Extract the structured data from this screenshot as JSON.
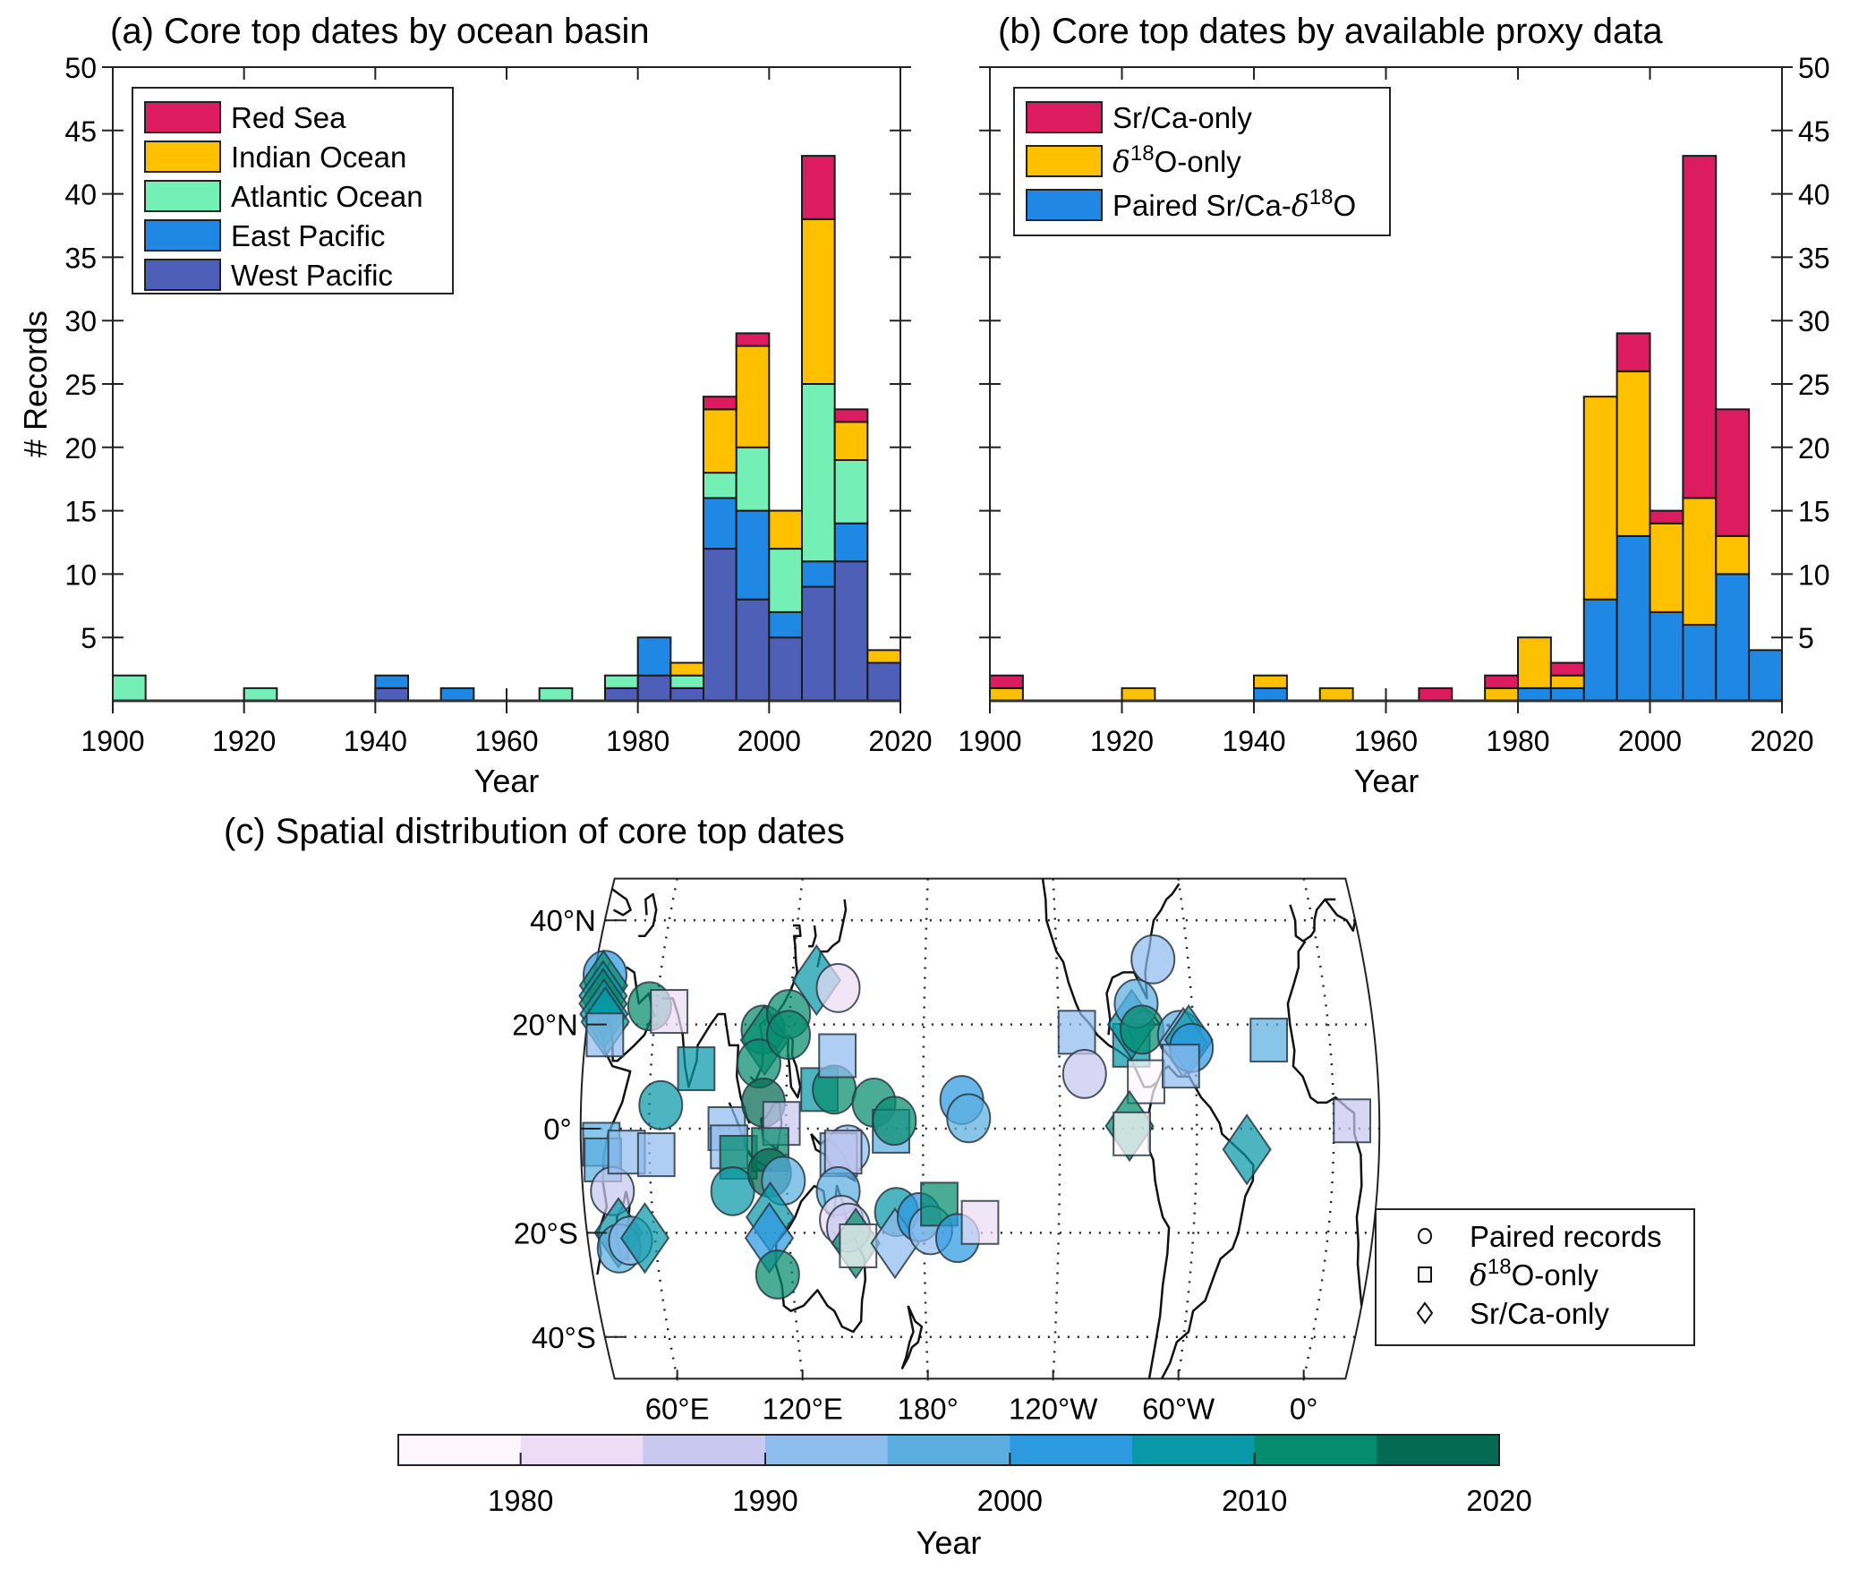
{
  "chart_data": [
    {
      "panel": "a",
      "type": "bar",
      "stacked": true,
      "title": "(a) Core top dates by ocean basin",
      "xlabel": "Year",
      "ylabel": "# Records",
      "xlim": [
        1900,
        2020
      ],
      "ylim": [
        0,
        50
      ],
      "xticks": [
        1900,
        1920,
        1940,
        1960,
        1980,
        2000,
        2020
      ],
      "yticks": [
        5,
        10,
        15,
        20,
        25,
        30,
        35,
        40,
        45,
        50
      ],
      "bin_width": 5,
      "bin_starts": [
        1900,
        1905,
        1910,
        1915,
        1920,
        1925,
        1930,
        1935,
        1940,
        1945,
        1950,
        1955,
        1960,
        1965,
        1970,
        1975,
        1980,
        1985,
        1990,
        1995,
        2000,
        2005,
        2010,
        2015
      ],
      "legend_position": "top-left",
      "series": [
        {
          "name": "West Pacific",
          "color": "#4e5fb8",
          "values": [
            0,
            0,
            0,
            0,
            0,
            0,
            0,
            0,
            1,
            0,
            0,
            0,
            0,
            0,
            0,
            1,
            2,
            1,
            12,
            8,
            5,
            9,
            11,
            3
          ]
        },
        {
          "name": "East Pacific",
          "color": "#1f88e5",
          "values": [
            0,
            0,
            0,
            0,
            0,
            0,
            0,
            0,
            1,
            0,
            1,
            0,
            0,
            0,
            0,
            0,
            3,
            0,
            4,
            7,
            2,
            2,
            3,
            0
          ]
        },
        {
          "name": "Atlantic Ocean",
          "color": "#74efb6",
          "values": [
            2,
            0,
            0,
            0,
            1,
            0,
            0,
            0,
            0,
            0,
            0,
            0,
            0,
            1,
            0,
            1,
            0,
            1,
            2,
            5,
            5,
            14,
            5,
            0
          ]
        },
        {
          "name": "Indian Ocean",
          "color": "#ffc000",
          "values": [
            0,
            0,
            0,
            0,
            0,
            0,
            0,
            0,
            0,
            0,
            0,
            0,
            0,
            0,
            0,
            0,
            0,
            1,
            5,
            8,
            3,
            13,
            3,
            1
          ]
        },
        {
          "name": "Red Sea",
          "color": "#dc1c5e",
          "values": [
            0,
            0,
            0,
            0,
            0,
            0,
            0,
            0,
            0,
            0,
            0,
            0,
            0,
            0,
            0,
            0,
            0,
            0,
            1,
            1,
            0,
            5,
            1,
            0
          ]
        }
      ],
      "legend_order": [
        "Red Sea",
        "Indian Ocean",
        "Atlantic Ocean",
        "East Pacific",
        "West Pacific"
      ]
    },
    {
      "panel": "b",
      "type": "bar",
      "stacked": true,
      "title": "(b) Core top dates by available proxy data",
      "xlabel": "Year",
      "ylabel": "",
      "xlim": [
        1900,
        2020
      ],
      "ylim": [
        0,
        50
      ],
      "xticks": [
        1900,
        1920,
        1940,
        1960,
        1980,
        2000,
        2020
      ],
      "yticks": [
        5,
        10,
        15,
        20,
        25,
        30,
        35,
        40,
        45,
        50
      ],
      "yaxis_side": "right",
      "bin_width": 5,
      "bin_starts": [
        1900,
        1905,
        1910,
        1915,
        1920,
        1925,
        1930,
        1935,
        1940,
        1945,
        1950,
        1955,
        1960,
        1965,
        1970,
        1975,
        1980,
        1985,
        1990,
        1995,
        2000,
        2005,
        2010,
        2015
      ],
      "legend_position": "top-left",
      "series": [
        {
          "name": "Paired Sr/Ca-δ18O",
          "color": "#1f88e5",
          "values": [
            0,
            0,
            0,
            0,
            0,
            0,
            0,
            0,
            1,
            0,
            0,
            0,
            0,
            0,
            0,
            0,
            1,
            1,
            8,
            13,
            7,
            6,
            10,
            4
          ]
        },
        {
          "name": "δ18O-only",
          "color": "#ffc000",
          "values": [
            1,
            0,
            0,
            0,
            1,
            0,
            0,
            0,
            1,
            0,
            1,
            0,
            0,
            0,
            0,
            1,
            4,
            1,
            16,
            13,
            7,
            10,
            3,
            0
          ]
        },
        {
          "name": "Sr/Ca-only",
          "color": "#dc1c5e",
          "values": [
            1,
            0,
            0,
            0,
            0,
            0,
            0,
            0,
            0,
            0,
            0,
            0,
            0,
            1,
            0,
            1,
            0,
            1,
            0,
            3,
            1,
            27,
            10,
            0
          ]
        }
      ],
      "legend_order": [
        "Sr/Ca-only",
        "δ18O-only",
        "Paired Sr/Ca-δ18O"
      ]
    },
    {
      "panel": "c",
      "type": "scatter",
      "title": "(c) Spatial distribution of core top dates",
      "projection": "Robinson (Pacific-centered)",
      "lat_labels": [
        "40°N",
        "20°N",
        "0°",
        "20°S",
        "40°S"
      ],
      "lat_values": [
        40,
        20,
        0,
        -20,
        -40
      ],
      "lon_labels": [
        "60°E",
        "120°E",
        "180°",
        "120°W",
        "60°W",
        "0°"
      ],
      "lon_values": [
        60,
        120,
        180,
        -120,
        -60,
        0
      ],
      "lon_range": [
        30,
        380
      ],
      "lat_range": [
        -50,
        50
      ],
      "marker_legend": [
        {
          "shape": "circle",
          "label": "Paired records"
        },
        {
          "shape": "square",
          "label": "δ18O-only"
        },
        {
          "shape": "diamond",
          "label": "Sr/Ca-only"
        }
      ],
      "colorbar": {
        "label": "Year",
        "range": [
          1975,
          2020
        ],
        "ticks": [
          1980,
          1990,
          2000,
          2010,
          2020
        ],
        "colors": [
          "#fdf6fb",
          "#ecdcf5",
          "#c8c8f0",
          "#8fbdee",
          "#5aaee0",
          "#2d9ae0",
          "#0898a8",
          "#058c6e",
          "#046a52"
        ]
      },
      "points": [
        {
          "lon": 34.9,
          "lat": 29.5,
          "shape": "circle",
          "year": 2000
        },
        {
          "lon": 35.0,
          "lat": 27.5,
          "shape": "diamond",
          "year": 2012
        },
        {
          "lon": 35.5,
          "lat": 25.5,
          "shape": "diamond",
          "year": 2008
        },
        {
          "lon": 36.0,
          "lat": 24.0,
          "shape": "diamond",
          "year": 2010
        },
        {
          "lon": 37.0,
          "lat": 22.0,
          "shape": "diamond",
          "year": 2009
        },
        {
          "lon": 38.0,
          "lat": 20.5,
          "shape": "diamond",
          "year": 2007
        },
        {
          "lon": 38.5,
          "lat": 18.0,
          "shape": "square",
          "year": 1990
        },
        {
          "lon": 39.0,
          "lat": -3.0,
          "shape": "square",
          "year": 1995
        },
        {
          "lon": 39.5,
          "lat": -6.0,
          "shape": "square",
          "year": 1996
        },
        {
          "lon": 43.0,
          "lat": -12.0,
          "shape": "circle",
          "year": 1988
        },
        {
          "lon": 44.0,
          "lat": -20.0,
          "shape": "diamond",
          "year": 2007
        },
        {
          "lon": 43.5,
          "lat": -23.0,
          "shape": "circle",
          "year": 1998
        },
        {
          "lon": 49.0,
          "lat": -21.5,
          "shape": "circle",
          "year": 1993
        },
        {
          "lon": 55.5,
          "lat": -21.0,
          "shape": "diamond",
          "year": 2008
        },
        {
          "lon": 50.0,
          "lat": -4.5,
          "shape": "square",
          "year": 1994
        },
        {
          "lon": 57.0,
          "lat": 23.5,
          "shape": "circle",
          "year": 2011
        },
        {
          "lon": 66.0,
          "lat": 22.5,
          "shape": "square",
          "year": 1982
        },
        {
          "lon": 65.0,
          "lat": 4.5,
          "shape": "circle",
          "year": 2008
        },
        {
          "lon": 63.0,
          "lat": -5.0,
          "shape": "square",
          "year": 1994
        },
        {
          "lon": 80.0,
          "lat": 11.5,
          "shape": "square",
          "year": 2007
        },
        {
          "lon": 94.0,
          "lat": 0.0,
          "shape": "square",
          "year": 1994
        },
        {
          "lon": 95.0,
          "lat": -3.5,
          "shape": "square",
          "year": 1993
        },
        {
          "lon": 99.0,
          "lat": -5.5,
          "shape": "square",
          "year": 2011
        },
        {
          "lon": 96.0,
          "lat": -12.0,
          "shape": "circle",
          "year": 2009
        },
        {
          "lon": 108.5,
          "lat": 19.0,
          "shape": "circle",
          "year": 2011
        },
        {
          "lon": 109.5,
          "lat": 17.0,
          "shape": "diamond",
          "year": 2012
        },
        {
          "lon": 107.5,
          "lat": 12.5,
          "shape": "circle",
          "year": 2010
        },
        {
          "lon": 110.0,
          "lat": 5.0,
          "shape": "circle",
          "year": 2016
        },
        {
          "lon": 119.5,
          "lat": 22.0,
          "shape": "circle",
          "year": 2011
        },
        {
          "lon": 120.0,
          "lat": 18.0,
          "shape": "circle",
          "year": 2012
        },
        {
          "lon": 118.0,
          "lat": 1.0,
          "shape": "square",
          "year": 1987
        },
        {
          "lon": 113.0,
          "lat": -4.0,
          "shape": "square",
          "year": 2011
        },
        {
          "lon": 112.5,
          "lat": -8.5,
          "shape": "circle",
          "year": 2017
        },
        {
          "lon": 118.5,
          "lat": -10.0,
          "shape": "circle",
          "year": 1997
        },
        {
          "lon": 112.0,
          "lat": -17.0,
          "shape": "diamond",
          "year": 2009
        },
        {
          "lon": 111.0,
          "lat": -21.0,
          "shape": "diamond",
          "year": 2000
        },
        {
          "lon": 113.5,
          "lat": -28.0,
          "shape": "circle",
          "year": 2011
        },
        {
          "lon": 131.0,
          "lat": 28.5,
          "shape": "diamond",
          "year": 2007
        },
        {
          "lon": 141.0,
          "lat": 27.0,
          "shape": "circle",
          "year": 1984
        },
        {
          "lon": 134.5,
          "lat": 7.5,
          "shape": "square",
          "year": 2008
        },
        {
          "lon": 141.0,
          "lat": 7.5,
          "shape": "circle",
          "year": 2011
        },
        {
          "lon": 142.0,
          "lat": 14.0,
          "shape": "square",
          "year": 1993
        },
        {
          "lon": 147.0,
          "lat": -4.0,
          "shape": "circle",
          "year": 1991
        },
        {
          "lon": 143.0,
          "lat": -5.0,
          "shape": "square",
          "year": 1992
        },
        {
          "lon": 145.0,
          "lat": -4.5,
          "shape": "square",
          "year": 1988
        },
        {
          "lon": 142.5,
          "lat": -12.0,
          "shape": "circle",
          "year": 1998
        },
        {
          "lon": 143.5,
          "lat": -17.5,
          "shape": "circle",
          "year": 1982
        },
        {
          "lon": 146.5,
          "lat": -19.0,
          "shape": "circle",
          "year": 1985
        },
        {
          "lon": 149.5,
          "lat": -22.0,
          "shape": "diamond",
          "year": 2011
        },
        {
          "lon": 150.5,
          "lat": -22.5,
          "shape": "square",
          "year": 1978
        },
        {
          "lon": 158.5,
          "lat": 5.0,
          "shape": "circle",
          "year": 2010
        },
        {
          "lon": 166.0,
          "lat": -0.5,
          "shape": "square",
          "year": 1997
        },
        {
          "lon": 167.5,
          "lat": 1.5,
          "shape": "circle",
          "year": 2011
        },
        {
          "lon": 168.0,
          "lat": -16.0,
          "shape": "circle",
          "year": 2008
        },
        {
          "lon": 167.0,
          "lat": -22.0,
          "shape": "diamond",
          "year": 1993
        },
        {
          "lon": 178.0,
          "lat": -17.0,
          "shape": "circle",
          "year": 2001
        },
        {
          "lon": 183.0,
          "lat": -19.5,
          "shape": "circle",
          "year": 1993
        },
        {
          "lon": 187.0,
          "lat": -14.5,
          "shape": "square",
          "year": 2011
        },
        {
          "lon": 197.0,
          "lat": 5.5,
          "shape": "circle",
          "year": 2001
        },
        {
          "lon": 200.0,
          "lat": 2.0,
          "shape": "circle",
          "year": 1998
        },
        {
          "lon": 195.0,
          "lat": -21.0,
          "shape": "circle",
          "year": 2000
        },
        {
          "lon": 205.0,
          "lat": -18.0,
          "shape": "square",
          "year": 1983
        },
        {
          "lon": 248.0,
          "lat": 18.5,
          "shape": "square",
          "year": 1993
        },
        {
          "lon": 251.0,
          "lat": 10.5,
          "shape": "circle",
          "year": 1988
        },
        {
          "lon": 272.0,
          "lat": 16.0,
          "shape": "square",
          "year": 2007
        },
        {
          "lon": 272.5,
          "lat": 20.0,
          "shape": "diamond",
          "year": 2008
        },
        {
          "lon": 275.0,
          "lat": 24.0,
          "shape": "circle",
          "year": 1999
        },
        {
          "lon": 277.0,
          "lat": 19.0,
          "shape": "circle",
          "year": 2011
        },
        {
          "lon": 278.0,
          "lat": 9.0,
          "shape": "square",
          "year": 1977
        },
        {
          "lon": 270.5,
          "lat": 0.5,
          "shape": "diamond",
          "year": 2013
        },
        {
          "lon": 271.5,
          "lat": -1.0,
          "shape": "square",
          "year": 1978
        },
        {
          "lon": 284.0,
          "lat": 32.5,
          "shape": "circle",
          "year": 1992
        },
        {
          "lon": 293.5,
          "lat": 18.0,
          "shape": "circle",
          "year": 1997
        },
        {
          "lon": 295.0,
          "lat": 16.5,
          "shape": "diamond",
          "year": 1994
        },
        {
          "lon": 297.5,
          "lat": 17.0,
          "shape": "diamond",
          "year": 2008
        },
        {
          "lon": 298.5,
          "lat": 15.5,
          "shape": "circle",
          "year": 2002
        },
        {
          "lon": 293.5,
          "lat": 12.0,
          "shape": "square",
          "year": 1993
        },
        {
          "lon": 333.0,
          "lat": 17.0,
          "shape": "square",
          "year": 1995
        },
        {
          "lon": 322.0,
          "lat": -4.0,
          "shape": "diamond",
          "year": 2007
        },
        {
          "lon": 368.0,
          "lat": 1.5,
          "shape": "square",
          "year": 1986
        }
      ]
    }
  ]
}
